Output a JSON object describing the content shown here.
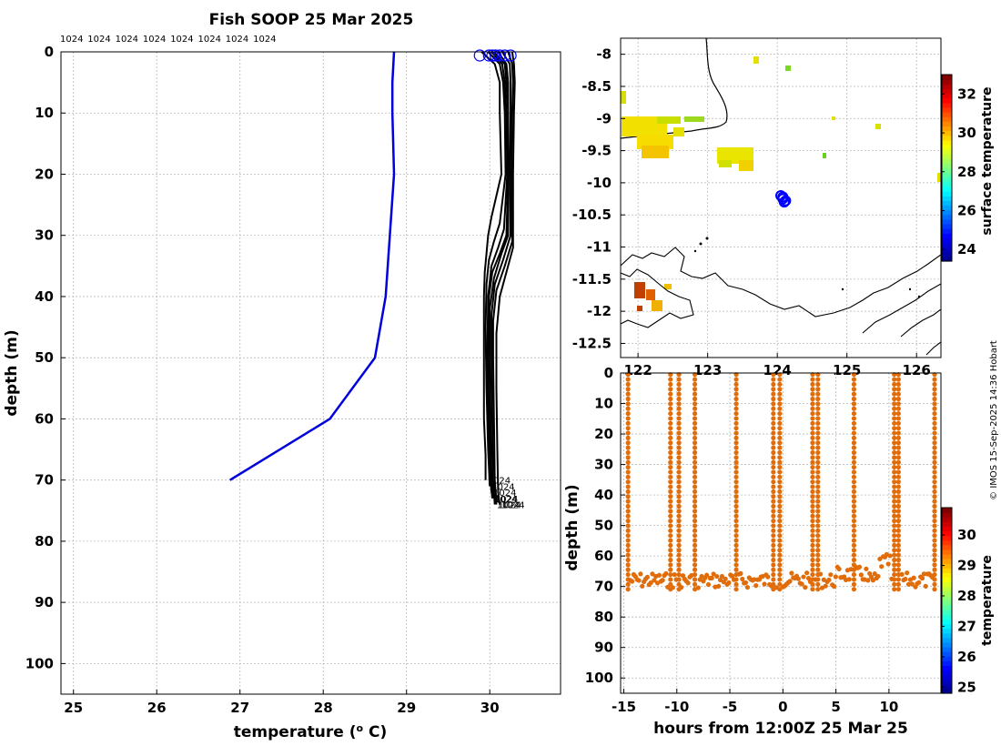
{
  "title": "Fish SOOP 25 Mar 2025",
  "credit": "© IMOS 15-Sep-2025 14:36 Hobart",
  "colors": {
    "mean_profile": "#0000dd",
    "profiles": "#000000",
    "surface_marker": "#0000ff",
    "track_points": "#e06c0a"
  },
  "chart_data": [
    {
      "type": "line",
      "name": "profiles",
      "xlabel": "temperature (° C)",
      "xlabel_parts": {
        "main": "temperature (",
        "sup": "o",
        "end": " C)"
      },
      "ylabel": "depth (m)",
      "xlim": [
        24.85,
        30.85
      ],
      "ylim": [
        0,
        105
      ],
      "y_reversed": true,
      "xticks": [
        25,
        26,
        27,
        28,
        29,
        30
      ],
      "yticks": [
        0,
        10,
        20,
        30,
        40,
        50,
        60,
        70,
        80,
        90,
        100
      ],
      "profile_label": "1024",
      "top_labels": [
        "1024",
        "1024",
        "1024",
        "1024",
        "1024",
        "1024",
        "1024",
        "1024"
      ],
      "series": [
        {
          "name": "mean",
          "depth": [
            0,
            5,
            10,
            20,
            30,
            40,
            50,
            60,
            70
          ],
          "temp": [
            28.85,
            28.83,
            28.83,
            28.85,
            28.8,
            28.75,
            28.62,
            28.08,
            26.88
          ]
        },
        {
          "name": "p1",
          "depth": [
            0,
            2,
            5,
            10,
            20,
            27,
            30,
            33,
            36,
            40,
            50,
            60,
            66,
            70
          ],
          "temp": [
            29.9,
            30.06,
            30.12,
            30.12,
            30.14,
            30.02,
            29.98,
            29.96,
            29.94,
            29.93,
            29.93,
            29.93,
            29.95,
            29.95
          ]
        },
        {
          "name": "p2",
          "depth": [
            0,
            2,
            5,
            10,
            20,
            28,
            31,
            34,
            38,
            45,
            55,
            65,
            71
          ],
          "temp": [
            29.98,
            30.12,
            30.16,
            30.18,
            30.19,
            30.12,
            30.05,
            29.99,
            29.96,
            29.95,
            29.96,
            29.98,
            30.0
          ]
        },
        {
          "name": "p3",
          "depth": [
            0,
            2,
            5,
            10,
            20,
            29,
            32,
            35,
            40,
            50,
            60,
            68,
            72
          ],
          "temp": [
            30.02,
            30.15,
            30.18,
            30.2,
            30.21,
            30.17,
            30.1,
            30.02,
            29.98,
            29.97,
            29.98,
            30.0,
            30.02
          ]
        },
        {
          "name": "p4",
          "depth": [
            0,
            2,
            5,
            10,
            20,
            30,
            33,
            36,
            40,
            50,
            60,
            70,
            73
          ],
          "temp": [
            30.05,
            30.18,
            30.2,
            30.22,
            30.22,
            30.2,
            30.12,
            30.03,
            29.99,
            29.98,
            29.99,
            30.01,
            30.03
          ]
        },
        {
          "name": "p5",
          "depth": [
            0,
            2,
            5,
            10,
            20,
            30,
            33,
            37,
            42,
            50,
            60,
            70,
            73
          ],
          "temp": [
            30.1,
            30.2,
            30.22,
            30.22,
            30.22,
            30.22,
            30.14,
            30.05,
            30.0,
            30.0,
            30.01,
            30.02,
            30.04
          ]
        },
        {
          "name": "p6",
          "depth": [
            0,
            2,
            5,
            10,
            20,
            30,
            34,
            38,
            43,
            50,
            60,
            70,
            74
          ],
          "temp": [
            30.15,
            30.24,
            30.25,
            30.25,
            30.24,
            30.25,
            30.16,
            30.06,
            30.02,
            30.02,
            30.03,
            30.04,
            30.06
          ]
        },
        {
          "name": "p7",
          "depth": [
            0,
            2,
            5,
            10,
            20,
            31,
            35,
            39,
            44,
            50,
            60,
            70,
            74
          ],
          "temp": [
            30.22,
            30.27,
            30.28,
            30.27,
            30.26,
            30.27,
            30.18,
            30.08,
            30.04,
            30.04,
            30.05,
            30.06,
            30.08
          ]
        },
        {
          "name": "p8",
          "depth": [
            0,
            2,
            5,
            10,
            20,
            32,
            36,
            40,
            46,
            55,
            65,
            72,
            74
          ],
          "temp": [
            30.27,
            30.29,
            30.3,
            30.29,
            30.28,
            30.28,
            30.2,
            30.12,
            30.08,
            30.08,
            30.09,
            30.1,
            30.12
          ]
        }
      ],
      "surface_markers": [
        29.88,
        29.99,
        30.03,
        30.07,
        30.12,
        30.18,
        30.25
      ]
    },
    {
      "type": "heatmap",
      "name": "map",
      "colorbar_label": "surface temperature",
      "xlim": [
        121.75,
        126.35
      ],
      "ylim": [
        -12.72,
        -7.75
      ],
      "xticks": [
        122,
        123,
        124,
        125,
        126
      ],
      "yticks": [
        -8,
        -8.5,
        -9,
        -9.5,
        -10,
        -10.5,
        -11,
        -11.5,
        -12,
        -12.5
      ],
      "colorbar_range": [
        23.4,
        33.0
      ],
      "colorbar_ticks": [
        24,
        26,
        28,
        30,
        32
      ],
      "track_position": {
        "lon": [
          124.05,
          124.08,
          124.1,
          124.12,
          124.08
        ],
        "lat": [
          -10.2,
          -10.25,
          -10.3,
          -10.28,
          -10.22
        ]
      }
    },
    {
      "type": "scatter",
      "name": "time-depth",
      "xlabel": "hours from 12:00Z 25 Mar 25",
      "ylabel": "depth (m)",
      "colorbar_label": "temperature",
      "xlim": [
        -15.3,
        14.9
      ],
      "ylim": [
        0,
        105
      ],
      "y_reversed": true,
      "xticks": [
        -15,
        -10,
        -5,
        0,
        5,
        10
      ],
      "yticks": [
        0,
        10,
        20,
        30,
        40,
        50,
        60,
        70,
        80,
        90,
        100
      ],
      "colorbar_range": [
        24.8,
        30.9
      ],
      "colorbar_ticks": [
        25,
        26,
        27,
        28,
        29,
        30
      ],
      "profile_times": [
        -14.6,
        -10.6,
        -9.8,
        -8.3,
        -4.4,
        -0.9,
        -0.3,
        2.8,
        3.3,
        6.7,
        10.5,
        10.9,
        14.3
      ],
      "bottom_depth": 68,
      "point_temperature": 30.05
    }
  ]
}
